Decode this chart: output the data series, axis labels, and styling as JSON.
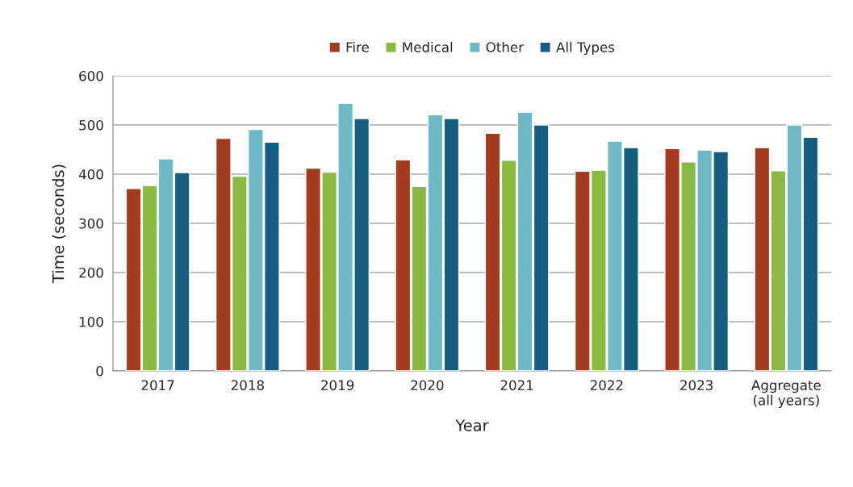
{
  "chart_data": {
    "type": "bar",
    "xlabel": "Year",
    "ylabel": "Time (seconds)",
    "categories": [
      "2017",
      "2018",
      "2019",
      "2020",
      "2021",
      "2022",
      "2023",
      "Aggregate\n(all years)"
    ],
    "series": [
      {
        "name": "Fire",
        "color": "#a33c1e",
        "values": [
          371,
          473,
          412,
          429,
          483,
          406,
          452,
          454
        ]
      },
      {
        "name": "Medical",
        "color": "#8aba41",
        "values": [
          377,
          396,
          404,
          375,
          428,
          408,
          425,
          407
        ]
      },
      {
        "name": "Other",
        "color": "#6fb8c8",
        "values": [
          431,
          491,
          544,
          521,
          526,
          467,
          449,
          500
        ]
      },
      {
        "name": "All Types",
        "color": "#165e80",
        "values": [
          403,
          465,
          513,
          513,
          500,
          454,
          446,
          475
        ]
      }
    ],
    "ylim": [
      0,
      600
    ],
    "yticks": [
      0,
      100,
      200,
      300,
      400,
      500,
      600
    ],
    "grid": "y",
    "legend": "top"
  }
}
